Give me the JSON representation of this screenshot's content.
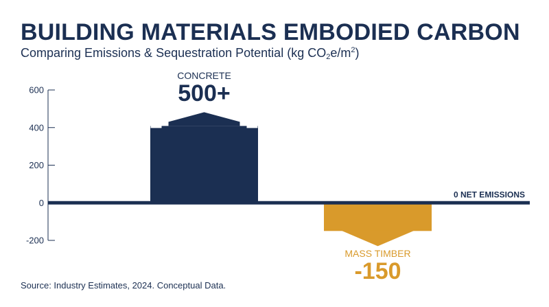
{
  "title": "BUILDING MATERIALS EMBODIED CARBON",
  "subtitle": {
    "prefix": "Comparing Emissions & Sequestration Potential (kg CO",
    "sub": "2",
    "mid": "e/m",
    "sup": "2",
    "suffix": ")"
  },
  "source": "Source: Industry Estimates, 2024. Conceptual Data.",
  "colors": {
    "navy": "#1b2f52",
    "gold": "#d99a2b"
  },
  "chart_data": {
    "type": "bar",
    "categories": [
      "CONCRETE",
      "MASS TIMBER"
    ],
    "values": [
      500,
      -150
    ],
    "value_labels": [
      "500+",
      "-150"
    ],
    "ylim": [
      -200,
      600
    ],
    "yticks": [
      600,
      400,
      200,
      0,
      -200
    ],
    "ytick_labels": [
      "600",
      "400",
      "200",
      "0",
      "-200"
    ],
    "zero_line_label": "0 NET EMISSIONS",
    "grid": false,
    "legend": "none"
  }
}
